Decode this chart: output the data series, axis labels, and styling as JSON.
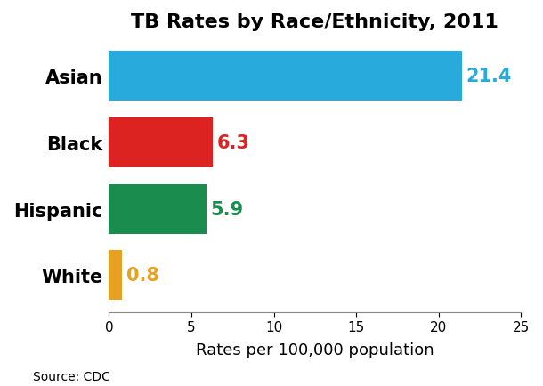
{
  "title": "TB Rates by Race/Ethnicity, 2011",
  "categories": [
    "White",
    "Hispanic",
    "Black",
    "Asian"
  ],
  "values": [
    0.8,
    5.9,
    6.3,
    21.4
  ],
  "bar_colors": [
    "#E8A020",
    "#1A8C4E",
    "#DD2222",
    "#29AADD"
  ],
  "label_colors": [
    "#E8A020",
    "#1A8C4E",
    "#DD2222",
    "#29AADD"
  ],
  "xlabel": "Rates per 100,000 population",
  "xlim": [
    0,
    25
  ],
  "xticks": [
    0,
    5,
    10,
    15,
    20,
    25
  ],
  "source_text": "Source: CDC",
  "title_fontsize": 16,
  "label_fontsize": 15,
  "tick_fontsize": 11,
  "value_fontsize": 15,
  "source_fontsize": 10,
  "bar_height": 0.75
}
